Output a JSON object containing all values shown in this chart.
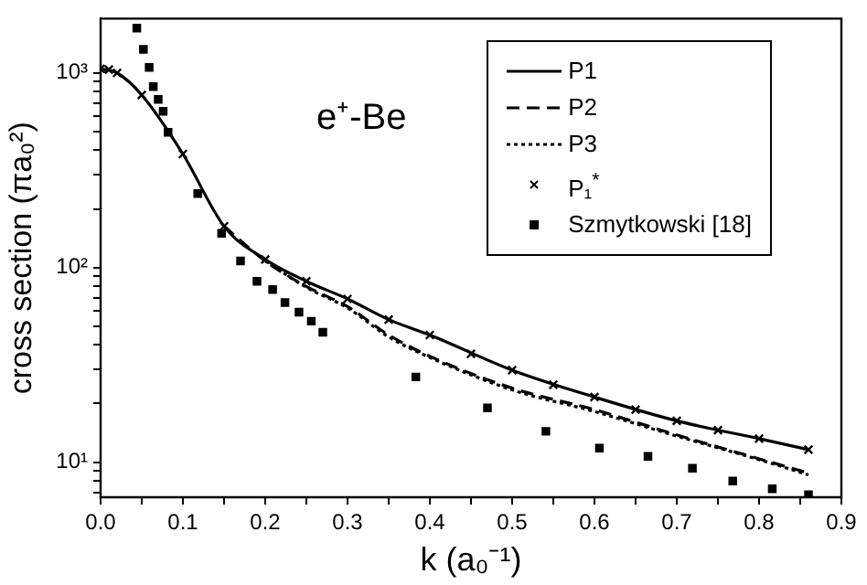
{
  "chart_data": {
    "type": "line",
    "xlabel": "k (a₀⁻¹)",
    "ylabel": "cross section (πa₀²)",
    "annotations": [
      "e⁺-Be"
    ],
    "log": "y",
    "grid": false,
    "legend": "top right",
    "xlim": [
      0,
      0.9
    ],
    "xticks": [
      {
        "value": 0,
        "label": "0.0"
      },
      {
        "value": 0.05,
        "label": null
      },
      {
        "value": 0.1,
        "label": "0.1"
      },
      {
        "value": 0.15,
        "label": null
      },
      {
        "value": 0.2,
        "label": "0.2"
      },
      {
        "value": 0.25,
        "label": null
      },
      {
        "value": 0.3,
        "label": "0.3"
      },
      {
        "value": 0.35,
        "label": null
      },
      {
        "value": 0.4,
        "label": "0.4"
      },
      {
        "value": 0.45,
        "label": null
      },
      {
        "value": 0.5,
        "label": "0.5"
      },
      {
        "value": 0.55,
        "label": null
      },
      {
        "value": 0.6,
        "label": "0.6"
      },
      {
        "value": 0.65,
        "label": null
      },
      {
        "value": 0.7,
        "label": "0.7"
      },
      {
        "value": 0.75,
        "label": null
      },
      {
        "value": 0.8,
        "label": "0.8"
      },
      {
        "value": 0.85,
        "label": null
      },
      {
        "value": 0.9,
        "label": "0.9"
      }
    ],
    "ylim": [
      6.6,
      1900
    ],
    "yticks": [
      {
        "value": 7,
        "label": null
      },
      {
        "value": 8,
        "label": null
      },
      {
        "value": 9,
        "label": null
      },
      {
        "value": 10,
        "label": "10¹"
      },
      {
        "value": 20,
        "label": null
      },
      {
        "value": 30,
        "label": null
      },
      {
        "value": 40,
        "label": null
      },
      {
        "value": 50,
        "label": null
      },
      {
        "value": 60,
        "label": null
      },
      {
        "value": 70,
        "label": null
      },
      {
        "value": 80,
        "label": null
      },
      {
        "value": 90,
        "label": null
      },
      {
        "value": 100,
        "label": "10²"
      },
      {
        "value": 200,
        "label": null
      },
      {
        "value": 300,
        "label": null
      },
      {
        "value": 400,
        "label": null
      },
      {
        "value": 500,
        "label": null
      },
      {
        "value": 600,
        "label": null
      },
      {
        "value": 700,
        "label": null
      },
      {
        "value": 800,
        "label": null
      },
      {
        "value": 900,
        "label": null
      },
      {
        "value": 1000,
        "label": "10³"
      }
    ],
    "series": [
      {
        "name": "P1",
        "line_style": "solid",
        "color": "#000000",
        "x": [
          0,
          0.02,
          0.05,
          0.1,
          0.15,
          0.2,
          0.25,
          0.3,
          0.35,
          0.4,
          0.5,
          0.6,
          0.7,
          0.8,
          0.86
        ],
        "values": [
          1050,
          1000,
          770,
          383,
          163,
          110,
          85,
          69,
          54,
          45,
          29.7,
          21.6,
          16.3,
          13.2,
          11.6
        ]
      },
      {
        "name": "P2",
        "line_style": "dashed",
        "color": "#000000",
        "x": [
          0.15,
          0.2,
          0.25,
          0.3,
          0.35,
          0.4,
          0.5,
          0.6,
          0.7,
          0.8,
          0.86
        ],
        "values": [
          163,
          108,
          80,
          63,
          45,
          35,
          24,
          18.6,
          13.8,
          10.4,
          8.8
        ]
      },
      {
        "name": "P3",
        "line_style": "dotted",
        "color": "#000000",
        "x": [
          0.2,
          0.25,
          0.3,
          0.35,
          0.4,
          0.5,
          0.6,
          0.7,
          0.8,
          0.86
        ],
        "values": [
          108,
          79,
          62,
          44,
          34.5,
          23.5,
          18.2,
          13.6,
          10.3,
          8.6
        ]
      },
      {
        "name": "P₁$^{*}$",
        "type": "scatter",
        "marker": "cross",
        "color": "#000000",
        "x": [
          0,
          0.01,
          0.02,
          0.05,
          0.1,
          0.15,
          0.2,
          0.25,
          0.3,
          0.35,
          0.4,
          0.45,
          0.5,
          0.55,
          0.6,
          0.65,
          0.7,
          0.75,
          0.8,
          0.86
        ],
        "values": [
          1050,
          1040,
          1000,
          770,
          383,
          163,
          110,
          85,
          69,
          54,
          45,
          36,
          29.7,
          25,
          21.6,
          18.6,
          16.3,
          14.6,
          13.2,
          11.6
        ]
      },
      {
        "name": "Szmytkowski [18]",
        "type": "scatter",
        "marker": "square",
        "color": "#000000",
        "x": [
          0.044,
          0.052,
          0.059,
          0.064,
          0.07,
          0.076,
          0.082,
          0.118,
          0.147,
          0.17,
          0.19,
          0.209,
          0.224,
          0.241,
          0.256,
          0.27,
          0.383,
          0.47,
          0.541,
          0.606,
          0.665,
          0.719,
          0.768,
          0.816,
          0.86
        ],
        "values": [
          1700,
          1320,
          1066,
          850,
          730,
          635,
          495,
          240,
          150,
          108,
          85,
          77,
          66,
          59,
          53,
          46.5,
          27.4,
          19,
          14.4,
          11.8,
          10.7,
          9.3,
          8.0,
          7.3,
          6.8
        ]
      }
    ]
  }
}
